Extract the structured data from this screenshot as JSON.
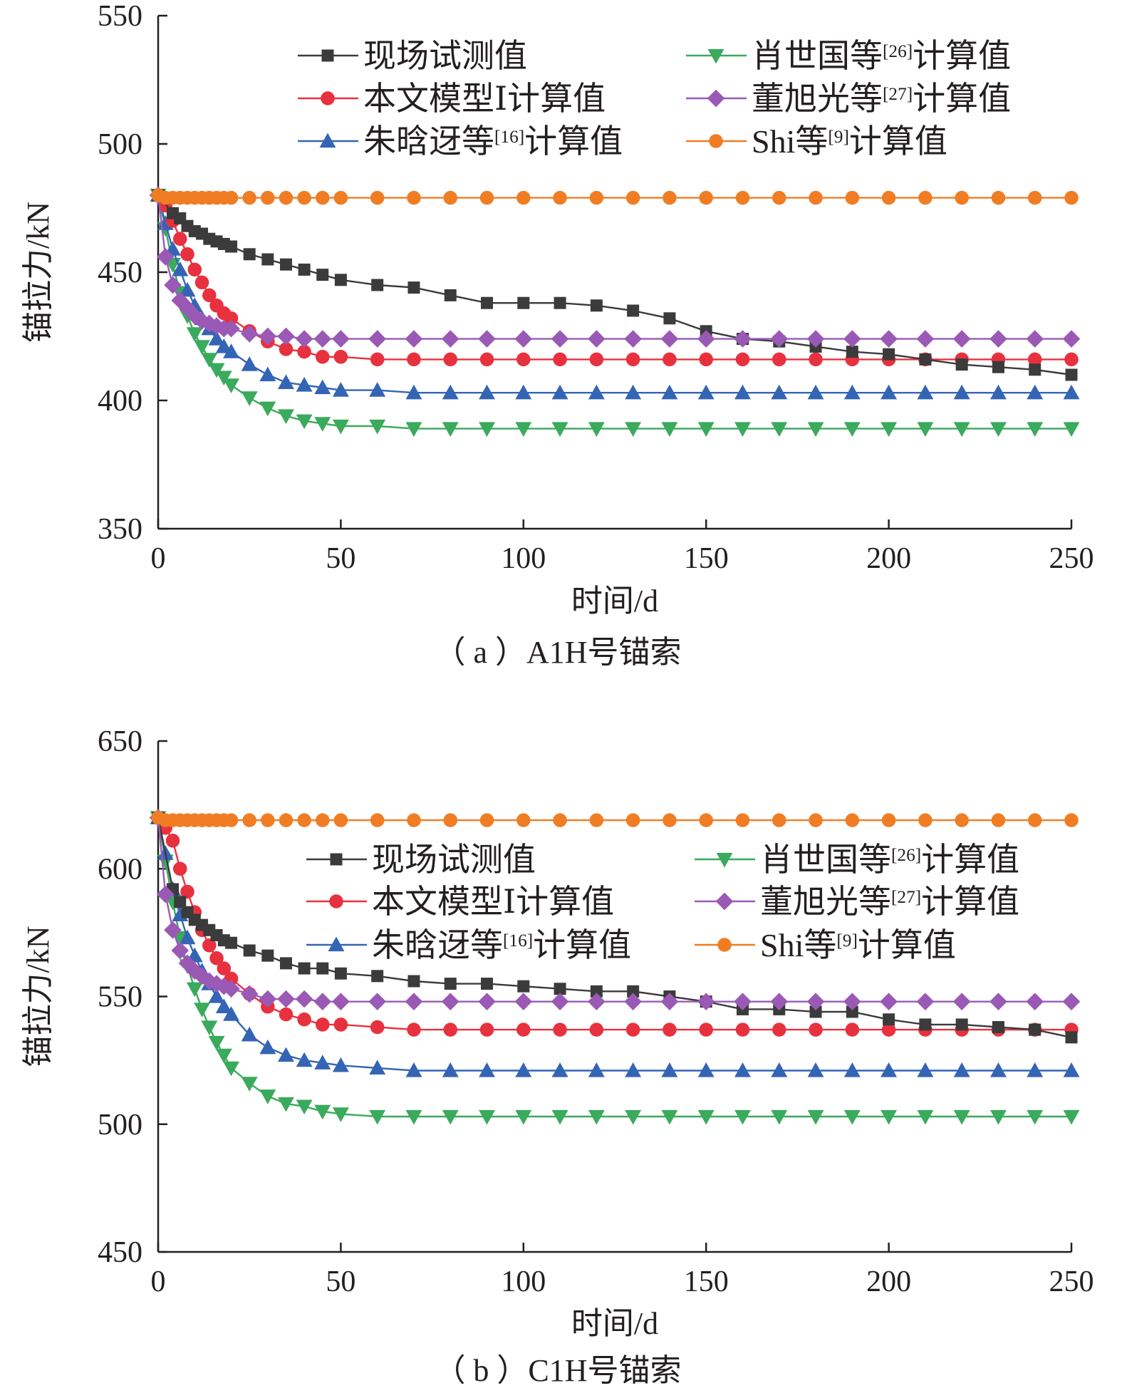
{
  "chart_data": [
    {
      "type": "line",
      "caption": "（ a ）A1H号锚索",
      "xlabel": "时间/d",
      "ylabel": "锚拉力/kN",
      "xlim": [
        0,
        250
      ],
      "ylim": [
        350,
        550
      ],
      "xticks": [
        "0",
        "50",
        "100",
        "150",
        "200",
        "250"
      ],
      "yticks": [
        "350",
        "400",
        "450",
        "500",
        "550"
      ],
      "grid": false,
      "legend_position": "top",
      "series": [
        {
          "name": "现场试测值",
          "color": "#3b3b3b",
          "marker": "square",
          "x": [
            0,
            4,
            6,
            8,
            10,
            12,
            14,
            16,
            18,
            20,
            25,
            30,
            35,
            40,
            45,
            50,
            60,
            70,
            80,
            90,
            100,
            110,
            120,
            130,
            140,
            150,
            160,
            170,
            180,
            190,
            200,
            210,
            220,
            230,
            240,
            250
          ],
          "y": [
            480,
            473,
            471,
            468,
            466,
            465,
            463,
            462,
            461,
            460,
            457,
            455,
            453,
            451,
            449,
            447,
            445,
            444,
            441,
            438,
            438,
            438,
            437,
            435,
            432,
            427,
            424,
            423,
            421,
            419,
            418,
            416,
            414,
            413,
            412,
            410
          ]
        },
        {
          "name": "本文模型Ⅰ计算值",
          "color": "#e8313f",
          "marker": "circle",
          "x": [
            0,
            2,
            4,
            6,
            8,
            10,
            12,
            14,
            16,
            18,
            20,
            25,
            30,
            35,
            40,
            45,
            50,
            60,
            70,
            80,
            90,
            100,
            110,
            120,
            130,
            140,
            150,
            160,
            170,
            180,
            190,
            200,
            210,
            220,
            230,
            240,
            250
          ],
          "y": [
            480,
            476,
            470,
            463,
            457,
            451,
            446,
            441,
            437,
            434,
            432,
            427,
            423,
            420,
            419,
            417,
            417,
            416,
            416,
            416,
            416,
            416,
            416,
            416,
            416,
            416,
            416,
            416,
            416,
            416,
            416,
            416,
            416,
            416,
            416,
            416,
            416
          ]
        },
        {
          "name": "朱晗迓等[16]计算值",
          "color": "#3465b5",
          "marker": "triangle-up",
          "x": [
            0,
            2,
            4,
            6,
            8,
            10,
            12,
            14,
            16,
            18,
            20,
            25,
            30,
            35,
            40,
            45,
            50,
            60,
            70,
            80,
            90,
            100,
            110,
            120,
            130,
            140,
            150,
            160,
            170,
            180,
            190,
            200,
            210,
            220,
            230,
            240,
            250
          ],
          "y": [
            480,
            469,
            459,
            451,
            443,
            437,
            432,
            428,
            424,
            421,
            419,
            414,
            410,
            407,
            406,
            405,
            404,
            404,
            403,
            403,
            403,
            403,
            403,
            403,
            403,
            403,
            403,
            403,
            403,
            403,
            403,
            403,
            403,
            403,
            403,
            403,
            403
          ]
        },
        {
          "name": "肖世国等[26]计算值",
          "color": "#3aaa5c",
          "marker": "triangle-down",
          "x": [
            0,
            2,
            4,
            6,
            8,
            10,
            12,
            14,
            16,
            18,
            20,
            25,
            30,
            35,
            40,
            45,
            50,
            60,
            70,
            80,
            90,
            100,
            110,
            120,
            130,
            140,
            150,
            160,
            170,
            180,
            190,
            200,
            210,
            220,
            230,
            240,
            250
          ],
          "y": [
            480,
            467,
            453,
            442,
            433,
            426,
            421,
            416,
            412,
            409,
            406,
            401,
            397,
            394,
            392,
            391,
            390,
            390,
            389,
            389,
            389,
            389,
            389,
            389,
            389,
            389,
            389,
            389,
            389,
            389,
            389,
            389,
            389,
            389,
            389,
            389,
            389
          ]
        },
        {
          "name": "董旭光等[27]计算值",
          "color": "#9b59b6",
          "marker": "diamond",
          "x": [
            0,
            2,
            4,
            6,
            8,
            10,
            12,
            14,
            16,
            18,
            20,
            25,
            30,
            35,
            40,
            45,
            50,
            60,
            70,
            80,
            90,
            100,
            110,
            120,
            130,
            140,
            150,
            160,
            170,
            180,
            190,
            200,
            210,
            220,
            230,
            240,
            250
          ],
          "y": [
            480,
            456,
            445,
            439,
            436,
            433,
            431,
            430,
            429,
            428,
            428,
            426,
            425,
            425,
            424,
            424,
            424,
            424,
            424,
            424,
            424,
            424,
            424,
            424,
            424,
            424,
            424,
            424,
            424,
            424,
            424,
            424,
            424,
            424,
            424,
            424,
            424
          ]
        },
        {
          "name": "Shi等[9]计算值",
          "color": "#f07d24",
          "marker": "circle",
          "x": [
            0,
            2,
            4,
            6,
            8,
            10,
            12,
            14,
            16,
            18,
            20,
            25,
            30,
            35,
            40,
            45,
            50,
            60,
            70,
            80,
            90,
            100,
            110,
            120,
            130,
            140,
            150,
            160,
            170,
            180,
            190,
            200,
            210,
            220,
            230,
            240,
            250
          ],
          "y": [
            480,
            479,
            479,
            479,
            479,
            479,
            479,
            479,
            479,
            479,
            479,
            479,
            479,
            479,
            479,
            479,
            479,
            479,
            479,
            479,
            479,
            479,
            479,
            479,
            479,
            479,
            479,
            479,
            479,
            479,
            479,
            479,
            479,
            479,
            479,
            479,
            479
          ]
        }
      ]
    },
    {
      "type": "line",
      "caption": "（ b ）C1H号锚索",
      "xlabel": "时间/d",
      "ylabel": "锚拉力/kN",
      "xlim": [
        0,
        250
      ],
      "ylim": [
        450,
        650
      ],
      "xticks": [
        "0",
        "50",
        "100",
        "150",
        "200",
        "250"
      ],
      "yticks": [
        "450",
        "500",
        "550",
        "600",
        "650"
      ],
      "grid": false,
      "legend_position": "center",
      "series": [
        {
          "name": "现场试测值",
          "color": "#3b3b3b",
          "marker": "square",
          "x": [
            0,
            4,
            6,
            8,
            10,
            12,
            14,
            16,
            18,
            20,
            25,
            30,
            35,
            40,
            45,
            50,
            60,
            70,
            80,
            90,
            100,
            110,
            120,
            130,
            140,
            150,
            160,
            170,
            180,
            190,
            200,
            210,
            220,
            230,
            240,
            250
          ],
          "y": [
            620,
            592,
            587,
            583,
            580,
            578,
            576,
            574,
            572,
            571,
            568,
            566,
            563,
            561,
            561,
            559,
            558,
            556,
            555,
            555,
            554,
            553,
            552,
            552,
            550,
            548,
            545,
            545,
            544,
            544,
            541,
            539,
            539,
            538,
            537,
            534
          ]
        },
        {
          "name": "本文模型Ⅰ计算值",
          "color": "#e8313f",
          "marker": "circle",
          "x": [
            0,
            2,
            4,
            6,
            8,
            10,
            12,
            14,
            16,
            18,
            20,
            25,
            30,
            35,
            40,
            45,
            50,
            60,
            70,
            80,
            90,
            100,
            110,
            120,
            130,
            140,
            150,
            160,
            170,
            180,
            190,
            200,
            210,
            220,
            230,
            240,
            250
          ],
          "y": [
            620,
            616,
            611,
            600,
            591,
            583,
            576,
            570,
            565,
            561,
            557,
            551,
            546,
            543,
            541,
            539,
            539,
            538,
            537,
            537,
            537,
            537,
            537,
            537,
            537,
            537,
            537,
            537,
            537,
            537,
            537,
            537,
            537,
            537,
            537,
            537,
            537
          ]
        },
        {
          "name": "朱晗迓等[16]计算值",
          "color": "#3465b5",
          "marker": "triangle-up",
          "x": [
            0,
            2,
            4,
            6,
            8,
            10,
            12,
            14,
            16,
            18,
            20,
            25,
            30,
            35,
            40,
            45,
            50,
            60,
            70,
            80,
            90,
            100,
            110,
            120,
            130,
            140,
            150,
            160,
            170,
            180,
            190,
            200,
            210,
            220,
            230,
            240,
            250
          ],
          "y": [
            620,
            606,
            592,
            582,
            573,
            566,
            560,
            555,
            550,
            546,
            543,
            535,
            530,
            527,
            525,
            524,
            523,
            522,
            521,
            521,
            521,
            521,
            521,
            521,
            521,
            521,
            521,
            521,
            521,
            521,
            521,
            521,
            521,
            521,
            521,
            521,
            521
          ]
        },
        {
          "name": "肖世国等[26]计算值",
          "color": "#3aaa5c",
          "marker": "triangle-down",
          "x": [
            0,
            2,
            4,
            6,
            8,
            10,
            12,
            14,
            16,
            18,
            20,
            25,
            30,
            35,
            40,
            45,
            50,
            60,
            70,
            80,
            90,
            100,
            110,
            120,
            130,
            140,
            150,
            160,
            170,
            180,
            190,
            200,
            210,
            220,
            230,
            240,
            250
          ],
          "y": [
            620,
            603,
            587,
            573,
            562,
            553,
            545,
            538,
            532,
            527,
            522,
            516,
            511,
            508,
            507,
            505,
            504,
            503,
            503,
            503,
            503,
            503,
            503,
            503,
            503,
            503,
            503,
            503,
            503,
            503,
            503,
            503,
            503,
            503,
            503,
            503,
            503
          ]
        },
        {
          "name": "董旭光等[27]计算值",
          "color": "#9b59b6",
          "marker": "diamond",
          "x": [
            0,
            2,
            4,
            6,
            8,
            10,
            12,
            14,
            16,
            18,
            20,
            25,
            30,
            35,
            40,
            45,
            50,
            60,
            70,
            80,
            90,
            100,
            110,
            120,
            130,
            140,
            150,
            160,
            170,
            180,
            190,
            200,
            210,
            220,
            230,
            240,
            250
          ],
          "y": [
            620,
            590,
            576,
            568,
            563,
            560,
            558,
            556,
            555,
            554,
            553,
            551,
            549,
            549,
            549,
            548,
            548,
            548,
            548,
            548,
            548,
            548,
            548,
            548,
            548,
            548,
            548,
            548,
            548,
            548,
            548,
            548,
            548,
            548,
            548,
            548,
            548
          ]
        },
        {
          "name": "Shi等[9]计算值",
          "color": "#f07d24",
          "marker": "circle",
          "x": [
            0,
            2,
            4,
            6,
            8,
            10,
            12,
            14,
            16,
            18,
            20,
            25,
            30,
            35,
            40,
            45,
            50,
            60,
            70,
            80,
            90,
            100,
            110,
            120,
            130,
            140,
            150,
            160,
            170,
            180,
            190,
            200,
            210,
            220,
            230,
            240,
            250
          ],
          "y": [
            620,
            619,
            619,
            619,
            619,
            619,
            619,
            619,
            619,
            619,
            619,
            619,
            619,
            619,
            619,
            619,
            619,
            619,
            619,
            619,
            619,
            619,
            619,
            619,
            619,
            619,
            619,
            619,
            619,
            619,
            619,
            619,
            619,
            619,
            619,
            619,
            619
          ]
        }
      ]
    }
  ]
}
